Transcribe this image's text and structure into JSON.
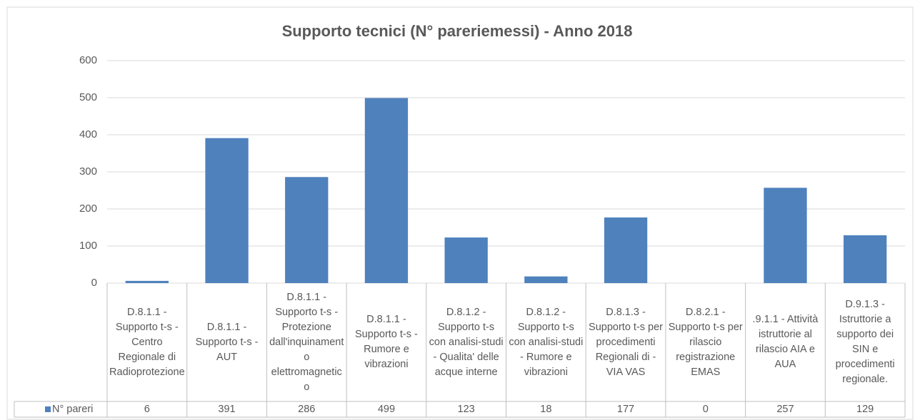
{
  "chart_data": {
    "type": "bar",
    "title": "Supporto tecnici (N° pareriemessi) - Anno 2018",
    "categories": [
      "D.8.1.1 - Supporto t-s - Centro Regionale di Radioprotezione",
      "D.8.1.1 - Supporto t-s - AUT",
      "D.8.1.1 - Supporto t-s - Protezione dall'inquinamento elettromagnetico",
      "D.8.1.1 - Supporto t-s - Rumore e vibrazioni",
      "D.8.1.2 - Supporto t-s con analisi-studi - Qualita' delle acque interne",
      "D.8.1.2 - Supporto t-s con analisi-studi - Rumore e vibrazioni",
      "D.8.1.3 - Supporto t-s per procedimenti Regionali di - VIA VAS",
      "D.8.2.1 - Supporto t-s per rilascio registrazione EMAS",
      ".9.1.1 - Attività istruttorie al rilascio AIA e AUA",
      "D.9.1.3 - Istruttorie a supporto dei SIN  e procedimenti regionale."
    ],
    "series": [
      {
        "name": "N° pareri",
        "color": "#4f81bd",
        "values": [
          6,
          391,
          286,
          499,
          123,
          18,
          177,
          0,
          257,
          129
        ]
      }
    ],
    "ylim": [
      0,
      600
    ],
    "yticks": [
      0,
      100,
      200,
      300,
      400,
      500,
      600
    ],
    "grid": true
  }
}
